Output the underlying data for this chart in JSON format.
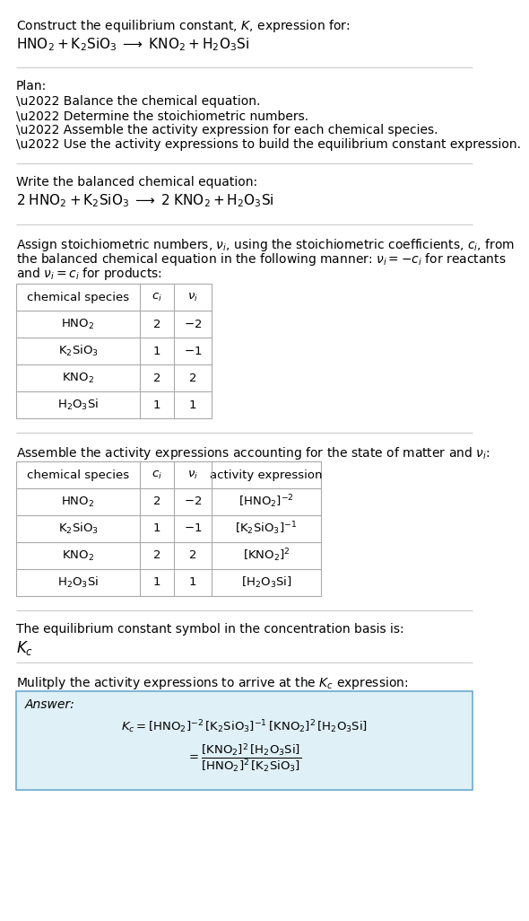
{
  "title_line1": "Construct the equilibrium constant, $K$, expression for:",
  "title_line2": "$\\mathrm{HNO_2 + K_2SiO_3 \\;\\longrightarrow\\; KNO_2 + H_2O_3Si}$",
  "plan_header": "Plan:",
  "plan_items": [
    "\\u2022 Balance the chemical equation.",
    "\\u2022 Determine the stoichiometric numbers.",
    "\\u2022 Assemble the activity expression for each chemical species.",
    "\\u2022 Use the activity expressions to build the equilibrium constant expression."
  ],
  "balanced_label": "Write the balanced chemical equation:",
  "balanced_eq": "$\\mathrm{2\\;HNO_2 + K_2SiO_3 \\;\\longrightarrow\\; 2\\;KNO_2 + H_2O_3Si}$",
  "table1_headers": [
    "chemical species",
    "$c_i$",
    "$\\nu_i$"
  ],
  "table1_rows": [
    [
      "$\\mathrm{HNO_2}$",
      "2",
      "$-2$"
    ],
    [
      "$\\mathrm{K_2SiO_3}$",
      "1",
      "$-1$"
    ],
    [
      "$\\mathrm{KNO_2}$",
      "2",
      "2"
    ],
    [
      "$\\mathrm{H_2O_3Si}$",
      "1",
      "1"
    ]
  ],
  "table2_headers": [
    "chemical species",
    "$c_i$",
    "$\\nu_i$",
    "activity expression"
  ],
  "table2_rows": [
    [
      "$\\mathrm{HNO_2}$",
      "2",
      "$-2$",
      "$[\\mathrm{HNO_2}]^{-2}$"
    ],
    [
      "$\\mathrm{K_2SiO_3}$",
      "1",
      "$-1$",
      "$[\\mathrm{K_2SiO_3}]^{-1}$"
    ],
    [
      "$\\mathrm{KNO_2}$",
      "2",
      "2",
      "$[\\mathrm{KNO_2}]^2$"
    ],
    [
      "$\\mathrm{H_2O_3Si}$",
      "1",
      "1",
      "$[\\mathrm{H_2O_3Si}]$"
    ]
  ],
  "kc_label": "The equilibrium constant symbol in the concentration basis is:",
  "kc_symbol": "$K_c$",
  "multiply_label": "Mulitply the activity expressions to arrive at the $K_c$ expression:",
  "bg_color": "#ffffff",
  "text_color": "#000000",
  "table_border_color": "#aaaaaa",
  "answer_box_color": "#dff0f7",
  "answer_box_border": "#6aabcc",
  "separator_color": "#cccccc"
}
